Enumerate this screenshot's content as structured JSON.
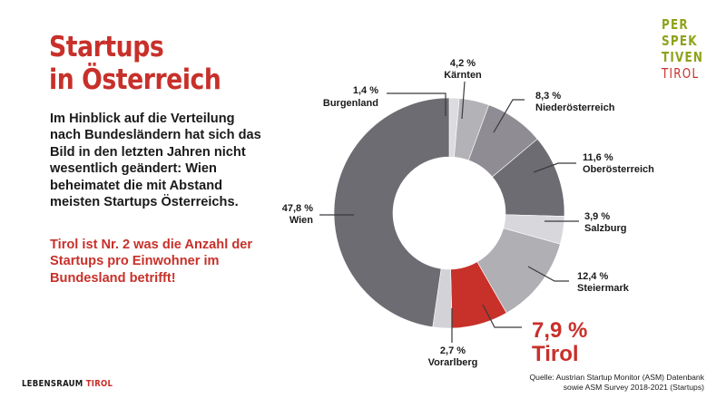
{
  "header": {
    "title_line1": "Startups",
    "title_line2": "in Österreich"
  },
  "body": {
    "paragraph": "Im Hinblick auf die Verteilung nach Bundesländern hat sich das Bild in den letzten Jahren nicht wesentlich geändert: Wien beheimatet die mit Abstand meisten Startups Österreichs.",
    "highlight": "Tirol ist Nr. 2 was die Anzahl der Startups pro Einwohner im Bundesland betrifft!"
  },
  "logos": {
    "perspektiven_lines": [
      "PER",
      "SPEK",
      "TIVEN"
    ],
    "perspektiven_tirol": "TIROL",
    "lebensraum": "LEBENSRAUM",
    "lebensraum_tirol": "TIROL"
  },
  "footer": {
    "source_line1": "Quelle: Austrian Startup Monitor (ASM) Datenbank",
    "source_line2": "sowie ASM Survey 2018-2021 (Startups)"
  },
  "colors": {
    "accent_red": "#c8302a",
    "brand_green": "#8fa21b"
  },
  "chart_data": {
    "type": "pie",
    "variant": "donut",
    "title": "Startups in Österreich",
    "unit": "%",
    "categories": [
      "Burgenland",
      "Kärnten",
      "Niederösterreich",
      "Oberösterreich",
      "Salzburg",
      "Steiermark",
      "Tirol",
      "Vorarlberg",
      "Wien"
    ],
    "values": [
      1.4,
      4.2,
      8.3,
      11.6,
      3.9,
      12.4,
      7.9,
      2.7,
      47.8
    ],
    "value_labels": [
      "1,4 %",
      "4,2 %",
      "8,3 %",
      "11,6 %",
      "3,9 %",
      "12,4 %",
      "7,9 %",
      "2,7 %",
      "47,8 %"
    ],
    "colors": [
      "#dcdbe0",
      "#b3b2b7",
      "#8f8d93",
      "#6d6c72",
      "#d8d7dc",
      "#b0afb4",
      "#c8302a",
      "#d3d2d7",
      "#6d6c72"
    ],
    "highlight": "Tirol",
    "start_angle_deg": 0,
    "direction": "clockwise",
    "legend": "none (direct callout labels)"
  }
}
